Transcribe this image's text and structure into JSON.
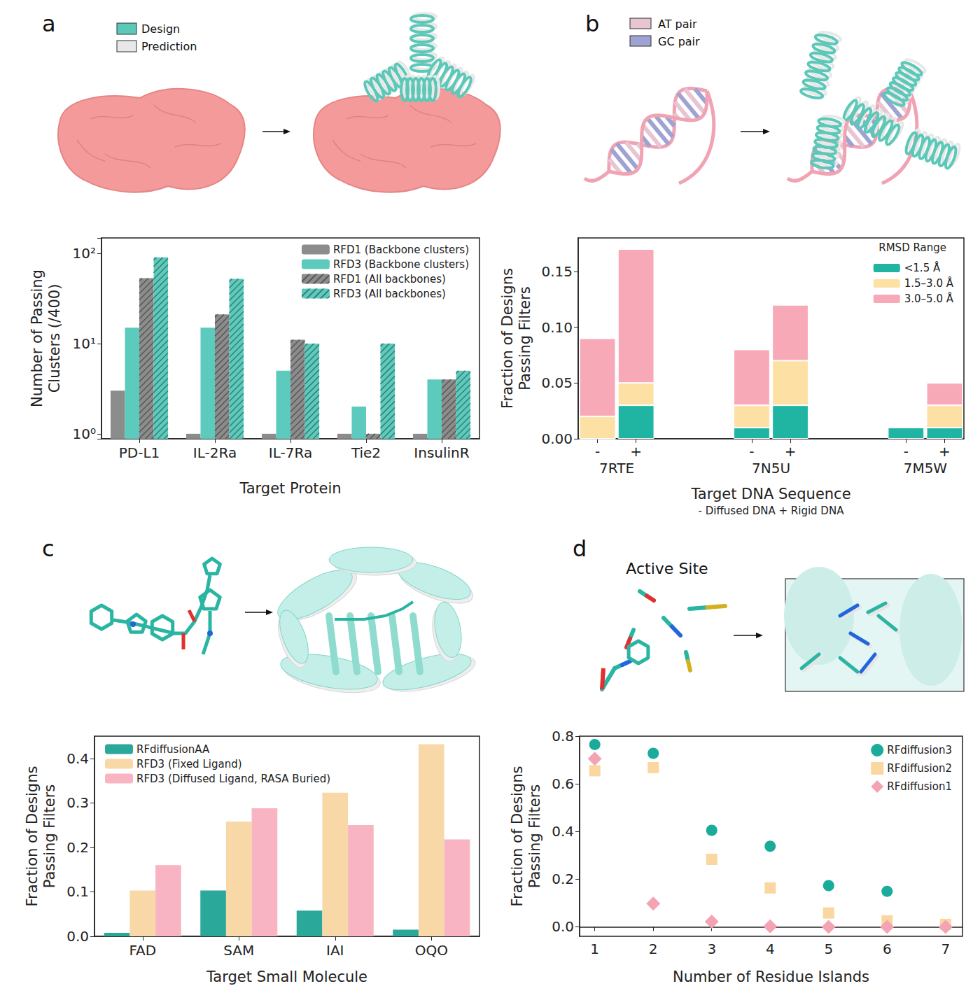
{
  "illustrations": {
    "panel_letters": [
      "a",
      "b",
      "c",
      "d"
    ],
    "a": {
      "legend": [
        {
          "name": "Design",
          "color": "#5bc8b8"
        },
        {
          "name": "Prediction",
          "color": "#e8e8e8"
        }
      ]
    },
    "b": {
      "legend": [
        {
          "name": "AT pair",
          "color": "#e8c5d3"
        },
        {
          "name": "GC pair",
          "color": "#9ea3d3"
        }
      ]
    },
    "d": {
      "title": "Active Site"
    }
  },
  "chart_data": [
    {
      "type": "bar",
      "categories": [
        "PD-L1",
        "IL-2Ra",
        "IL-7Ra",
        "Tie2",
        "InsulinR"
      ],
      "series": [
        {
          "name": "RFD1 (Backbone clusters)",
          "color": "#8c8c8c",
          "values": [
            3,
            1,
            1,
            1,
            1
          ]
        },
        {
          "name": "RFD3 (Backbone clusters)",
          "color": "#5ccbbd",
          "values": [
            15,
            15,
            5,
            2,
            4
          ]
        },
        {
          "name": "RFD1 (All backbones)",
          "color": "#8c8c8c",
          "marker": "hatch",
          "values": [
            53,
            21,
            11,
            1,
            4
          ]
        },
        {
          "name": "RFD3 (All backbones)",
          "color": "#5ccbbd",
          "marker": "hatch",
          "values": [
            90,
            52,
            10,
            10,
            5
          ]
        }
      ],
      "xlabel": "Target Protein",
      "ylabel": "Number of Passing Clusters (/400)",
      "log": "y",
      "ylim": [
        0.88,
        148
      ],
      "yticks": [
        {
          "value": 1,
          "label": "10⁰"
        },
        {
          "value": 10,
          "label": "10¹"
        },
        {
          "value": 100,
          "label": "10²"
        }
      ],
      "legend": "upper right",
      "grid": false
    },
    {
      "type": "bar",
      "categories": [
        "-",
        "+",
        null,
        null,
        "-",
        "+",
        null,
        null,
        "-",
        "+"
      ],
      "groups": [
        "7RTE",
        null,
        "7N5U",
        null,
        "7M5W"
      ],
      "series": [
        {
          "name": "<1.5 Å",
          "color": "#1fb5a2",
          "values": [
            0,
            0.03,
            null,
            null,
            0.01,
            0.03,
            null,
            null,
            0.01,
            0.01
          ]
        },
        {
          "name": "1.5–3.0 Å",
          "color": "#fde0a3",
          "values": [
            0.02,
            0.02,
            null,
            null,
            0.02,
            0.04,
            null,
            null,
            0,
            0.02
          ]
        },
        {
          "name": "3.0–5.0 Å",
          "color": "#f8a9b8",
          "values": [
            0.07,
            0.12,
            null,
            null,
            0.05,
            0.05,
            null,
            null,
            0,
            0.02
          ]
        }
      ],
      "stacked": true,
      "legend_title": "RMSD Range",
      "legend": "upper right",
      "xlabel": "Target DNA Sequence",
      "subtitle": "- Diffused DNA + Rigid DNA",
      "ylabel": "Fraction of Designs Passing Filters",
      "ylim": [
        0,
        0.18
      ],
      "yticks": [
        {
          "value": 0,
          "label": "0.00"
        },
        0.05,
        {
          "value": 0.1,
          "label": "0.10"
        },
        0.15
      ],
      "grid": false
    },
    {
      "type": "bar",
      "categories": [
        "FAD",
        "SAM",
        "IAI",
        "OQO"
      ],
      "series": [
        {
          "name": "RFdiffusionAA",
          "color": "#2aa89a",
          "values": [
            0.008,
            0.103,
            0.058,
            0.015
          ]
        },
        {
          "name": "RFD3 (Fixed Ligand)",
          "color": "#f9d8a8",
          "values": [
            0.103,
            0.258,
            0.323,
            0.432
          ]
        },
        {
          "name": "RFD3 (Diffused Ligand, RASA Buried)",
          "color": "#f8b4c2",
          "values": [
            0.16,
            0.288,
            0.25,
            0.218
          ]
        }
      ],
      "xlabel": "Target Small Molecule",
      "ylabel": "Fraction of Designs Passing Filters",
      "ylim": [
        0,
        0.45
      ],
      "yticks": [
        {
          "value": 0,
          "label": "0.0"
        },
        0.1,
        0.2,
        0.3,
        0.4
      ],
      "legend": "upper left",
      "grid": false
    },
    {
      "type": "scatter",
      "x": [
        1,
        2,
        3,
        4,
        5,
        6,
        7
      ],
      "series": [
        {
          "name": "RFdiffusion3",
          "color": "#1aab9b",
          "marker": "circle",
          "values": [
            0.765,
            0.728,
            0.405,
            0.338,
            0.173,
            0.149,
            null
          ]
        },
        {
          "name": "RFdiffusion2",
          "color": "#fad7a0",
          "marker": "square",
          "values": [
            0.655,
            0.668,
            0.283,
            0.163,
            0.058,
            0.025,
            0.01
          ]
        },
        {
          "name": "RFdiffusion1",
          "color": "#f4a3b4",
          "marker": "diamond",
          "values": [
            0.705,
            0.097,
            0.022,
            0.002,
            0,
            0,
            0
          ]
        }
      ],
      "xlabel": "Number of Residue Islands",
      "ylabel": "Fraction of Designs Passing Filters",
      "xlim": [
        0.74,
        7.29
      ],
      "xticks": [
        1,
        2,
        3,
        4,
        5,
        6,
        7
      ],
      "ylim": [
        -0.04,
        0.8
      ],
      "yticks": [
        {
          "value": 0,
          "label": "0.0"
        },
        0.2,
        0.4,
        0.6,
        0.8
      ],
      "legend": "upper right",
      "grid": false
    }
  ]
}
